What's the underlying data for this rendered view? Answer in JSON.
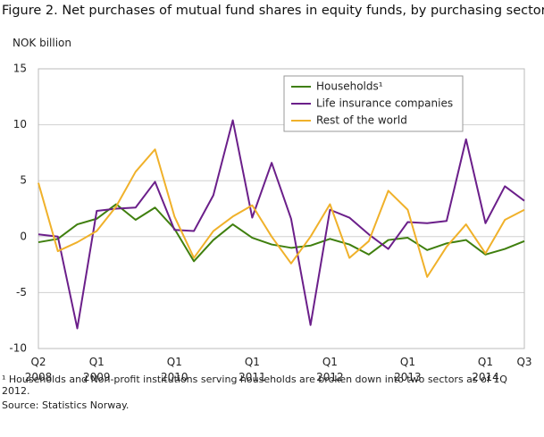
{
  "chart_data": {
    "type": "line",
    "title": "Figure 2. Net purchases of mutual fund shares in equity funds, by purchasing sector",
    "y_label": "NOK billion",
    "categories": [
      "Q2\n2008",
      null,
      null,
      "Q1\n2009",
      null,
      null,
      null,
      "Q1\n2010",
      null,
      null,
      null,
      "Q1\n2011",
      null,
      null,
      null,
      "Q1\n2012",
      null,
      null,
      null,
      "Q1\n2013",
      null,
      null,
      null,
      "Q1\n2014",
      null,
      "Q3"
    ],
    "series": [
      {
        "name": "Households¹",
        "color": "#3f7f0e",
        "values": [
          -0.5,
          -0.2,
          1.1,
          1.6,
          2.9,
          1.5,
          2.6,
          0.7,
          -2.2,
          -0.3,
          1.1,
          -0.1,
          -0.7,
          -1.0,
          -0.8,
          -0.2,
          -0.7,
          -1.6,
          -0.3,
          -0.1,
          -1.2,
          -0.6,
          -0.3,
          -1.6,
          -1.1,
          -0.4
        ]
      },
      {
        "name": "Life insurance companies",
        "color": "#6b1f8a",
        "values": [
          0.2,
          0,
          -8.2,
          2.3,
          2.5,
          2.6,
          4.9,
          0.6,
          0.5,
          3.7,
          10.4,
          1.7,
          6.6,
          1.6,
          -7.9,
          2.4,
          1.7,
          0.2,
          -1.1,
          1.3,
          1.2,
          1.4,
          8.7,
          1.2,
          4.5,
          3.2
        ]
      },
      {
        "name": "Rest of the world",
        "color": "#f0b12a",
        "values": [
          4.8,
          -1.3,
          -0.5,
          0.5,
          2.7,
          5.8,
          7.8,
          1.8,
          -1.9,
          0.5,
          1.8,
          2.8,
          0,
          -2.4,
          0,
          2.9,
          -1.9,
          -0.4,
          4.1,
          2.4,
          -3.6,
          -0.9,
          1.1,
          -1.5,
          1.5,
          2.4
        ]
      }
    ],
    "ylim": [
      -10,
      15
    ],
    "yticks": [
      -10,
      -5,
      0,
      5,
      10,
      15
    ],
    "grid": true,
    "legend": "top-right",
    "footnote": "¹ Households and Non-profit institutions serving households are broken down into two sectors as of 1Q 2012.",
    "source": "Source: Statistics Norway."
  }
}
